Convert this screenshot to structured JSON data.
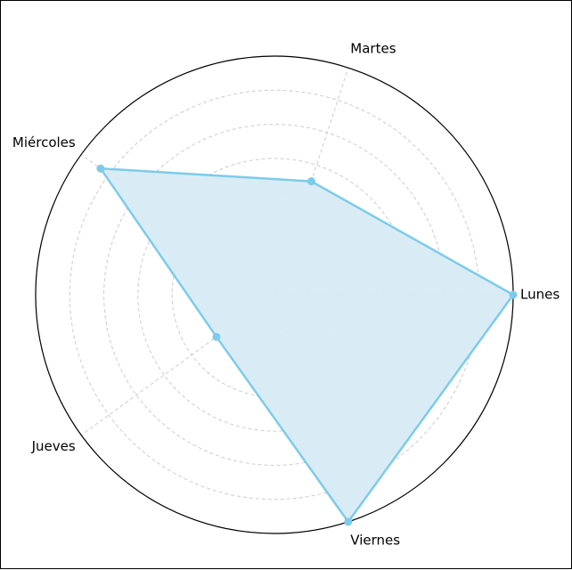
{
  "chart_data": {
    "type": "radar",
    "categories": [
      "Lunes",
      "Martes",
      "Miércoles",
      "Jueves",
      "Viernes"
    ],
    "values": [
      100,
      50,
      90,
      30,
      100
    ],
    "rmax": 100,
    "grid": true,
    "grid_style": "dashed",
    "colors": {
      "line": "#7dcbea",
      "fill": "#d7ebf6",
      "grid": "#cccccc",
      "frame": "#000000"
    }
  }
}
